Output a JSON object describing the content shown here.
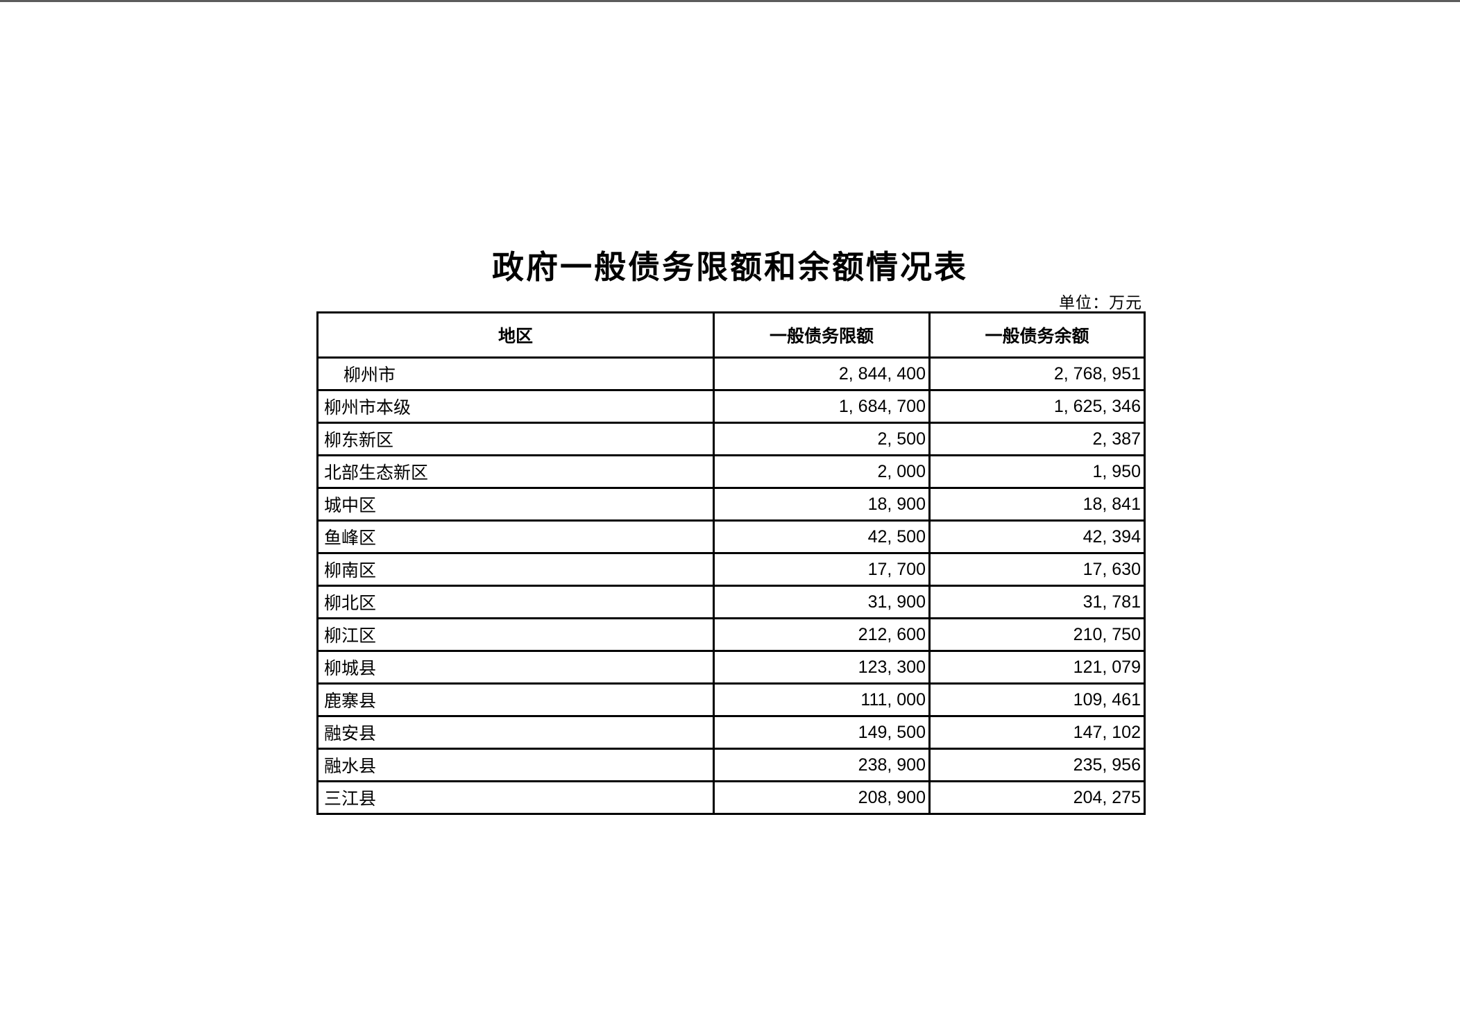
{
  "page": {
    "title": "政府一般债务限额和余额情况表",
    "unit_label": "单位：万元"
  },
  "colors": {
    "background": "#ffffff",
    "top_edge": "#5c5c5c",
    "table_border": "#000000",
    "text": "#000000"
  },
  "table": {
    "columns": [
      "地区",
      "一般债务限额",
      "一般债务余额"
    ],
    "rows": [
      {
        "region": "柳州市",
        "indent": true,
        "limit": "2, 844, 400",
        "balance": "2, 768, 951"
      },
      {
        "region": "柳州市本级",
        "indent": false,
        "limit": "1, 684, 700",
        "balance": "1, 625, 346"
      },
      {
        "region": "柳东新区",
        "indent": false,
        "limit": "2, 500",
        "balance": "2, 387"
      },
      {
        "region": "北部生态新区",
        "indent": false,
        "limit": "2, 000",
        "balance": "1, 950"
      },
      {
        "region": "城中区",
        "indent": false,
        "limit": "18, 900",
        "balance": "18, 841"
      },
      {
        "region": "鱼峰区",
        "indent": false,
        "limit": "42, 500",
        "balance": "42, 394"
      },
      {
        "region": "柳南区",
        "indent": false,
        "limit": "17, 700",
        "balance": "17, 630"
      },
      {
        "region": "柳北区",
        "indent": false,
        "limit": "31, 900",
        "balance": "31, 781"
      },
      {
        "region": "柳江区",
        "indent": false,
        "limit": "212, 600",
        "balance": "210, 750"
      },
      {
        "region": "柳城县",
        "indent": false,
        "limit": "123, 300",
        "balance": "121, 079"
      },
      {
        "region": "鹿寨县",
        "indent": false,
        "limit": "111, 000",
        "balance": "109, 461"
      },
      {
        "region": "融安县",
        "indent": false,
        "limit": "149, 500",
        "balance": "147, 102"
      },
      {
        "region": "融水县",
        "indent": false,
        "limit": "238, 900",
        "balance": "235, 956"
      },
      {
        "region": "三江县",
        "indent": false,
        "limit": "208, 900",
        "balance": "204, 275"
      }
    ]
  }
}
